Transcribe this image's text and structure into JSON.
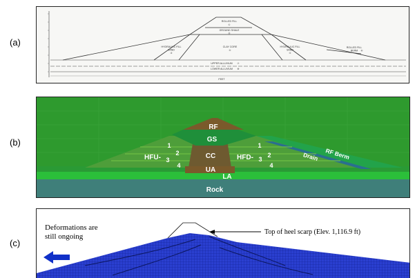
{
  "panels": {
    "a": {
      "label": "(a)",
      "drawing_labels": {
        "rolled_fill_crest": "ROLLED FILL",
        "crest_marker": "①",
        "ground_shale": "GROUND SHALE",
        "ground_shale_marker": "②",
        "hydraulic_fill_sand_up": "HYDRAULIC FILL",
        "hydraulic_fill_sand_up_2": "SAND",
        "hyd_up_marker": "③",
        "clay_core": "CLAY CORE",
        "clay_core_marker": "⑤",
        "hydraulic_fill_sand_down": "HYDRAULIC FILL",
        "hydraulic_fill_sand_down_2": "SAND",
        "hyd_down_marker": "④",
        "rolled_fill_berm": "ROLLED FILL",
        "rolled_fill_berm_2": "BERM",
        "berm_marker": "⑥",
        "upper_alluvium": "UPPER ALLUVIUM",
        "upper_alluvium_marker": "⑦",
        "lower_alluvium": "LOWER ALLUVIUM",
        "lower_alluvium_marker": "⑧",
        "feet": "FEET"
      }
    },
    "b": {
      "label": "(b)",
      "zones": {
        "rf": "RF",
        "gs": "GS",
        "cc": "CC",
        "ua": "UA",
        "la": "LA",
        "rock": "Rock",
        "hfu": "HFU-",
        "hfd": "HFD-",
        "drain": "Drain",
        "rf_berm": "RF Berm",
        "u1": "1",
        "u2": "2",
        "u3": "3",
        "u4": "4",
        "d1": "1",
        "d2": "2",
        "d3": "3",
        "d4": "4"
      }
    },
    "c": {
      "label": "(c)",
      "deformation_note_line1": "Deformations are",
      "deformation_note_line2": "still ongoing",
      "scarp_note": "Top of heel scarp (Elev. 1,116.9 ft)",
      "arrow_color": "#1030c8",
      "mesh_color": "#2233bb"
    }
  },
  "colors": {
    "rf": "#7a5a2b",
    "gs": "#1f8f3a",
    "cc": "#6e5a30",
    "hf": "#4fa63b",
    "ua": "#7a5a2b",
    "la": "#2bbf3a",
    "rock": "#3f7f7a",
    "berm": "#1f9a40",
    "drain": "#2a6f8f"
  }
}
